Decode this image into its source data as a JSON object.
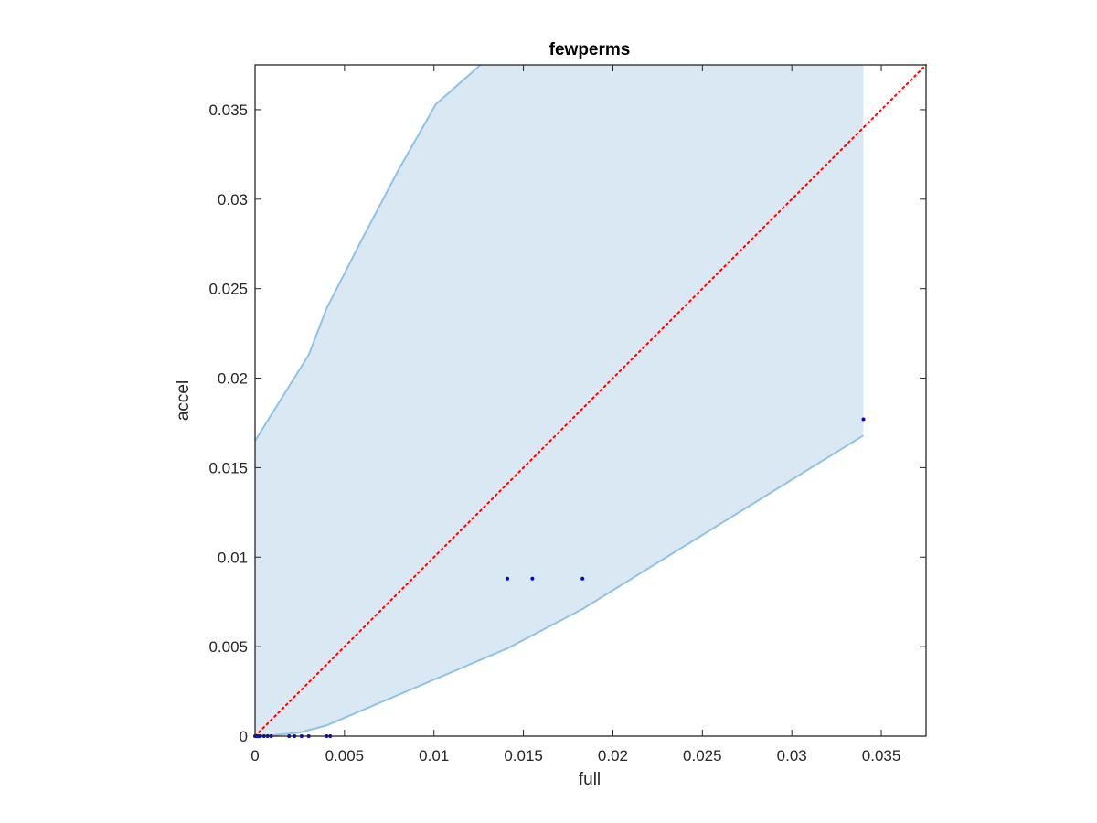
{
  "chart_data": {
    "type": "scatter",
    "title": "fewperms",
    "xlabel": "full",
    "ylabel": "accel",
    "xlim": [
      0,
      0.0375
    ],
    "ylim": [
      0,
      0.0375
    ],
    "xticks": [
      0,
      0.005,
      0.01,
      0.015,
      0.02,
      0.025,
      0.03,
      0.035
    ],
    "xtick_labels": [
      "0",
      "0.005",
      "0.01",
      "0.015",
      "0.02",
      "0.025",
      "0.03",
      "0.035"
    ],
    "yticks": [
      0,
      0.005,
      0.01,
      0.015,
      0.02,
      0.025,
      0.03,
      0.035
    ],
    "ytick_labels": [
      "0",
      "0.005",
      "0.01",
      "0.015",
      "0.02",
      "0.025",
      "0.03",
      "0.035"
    ],
    "grid": false,
    "box": true,
    "colors": {
      "band_fill": "#dae8f4",
      "band_edge": "#8fc2e6",
      "points": "#0000ee",
      "diagonal": "#ff0000",
      "axes": "#262626"
    },
    "confidence_band": {
      "upper": [
        {
          "x": 0.0,
          "y": 0.0165
        },
        {
          "x": 0.0005,
          "y": 0.0173
        },
        {
          "x": 0.001,
          "y": 0.0181
        },
        {
          "x": 0.002,
          "y": 0.0197
        },
        {
          "x": 0.003,
          "y": 0.0213
        },
        {
          "x": 0.004,
          "y": 0.0239
        },
        {
          "x": 0.006,
          "y": 0.0278
        },
        {
          "x": 0.008,
          "y": 0.0316
        },
        {
          "x": 0.0101,
          "y": 0.0353
        },
        {
          "x": 0.0126,
          "y": 0.0375
        },
        {
          "x": 0.034,
          "y": 0.0375
        }
      ],
      "lower": [
        {
          "x": 0.0,
          "y": 0.0
        },
        {
          "x": 0.001,
          "y": 5e-05
        },
        {
          "x": 0.0025,
          "y": 0.0002
        },
        {
          "x": 0.004,
          "y": 0.0006
        },
        {
          "x": 0.0141,
          "y": 0.0049
        },
        {
          "x": 0.0183,
          "y": 0.0071
        },
        {
          "x": 0.034,
          "y": 0.0168
        }
      ]
    },
    "diagonal": [
      [
        0,
        0
      ],
      [
        0.0375,
        0.0375
      ]
    ],
    "points": [
      {
        "x": 0.0,
        "y": 0.0
      },
      {
        "x": 0.0001,
        "y": 0.0
      },
      {
        "x": 0.0002,
        "y": 0.0
      },
      {
        "x": 0.0003,
        "y": 0.0
      },
      {
        "x": 0.0005,
        "y": 0.0
      },
      {
        "x": 0.0007,
        "y": 0.0
      },
      {
        "x": 0.0009,
        "y": 0.0
      },
      {
        "x": 0.0019,
        "y": 0.0
      },
      {
        "x": 0.0022,
        "y": 0.0
      },
      {
        "x": 0.0026,
        "y": 0.0
      },
      {
        "x": 0.003,
        "y": 0.0
      },
      {
        "x": 0.004,
        "y": 0.0
      },
      {
        "x": 0.0042,
        "y": 0.0
      },
      {
        "x": 0.0141,
        "y": 0.0088
      },
      {
        "x": 0.0155,
        "y": 0.0088
      },
      {
        "x": 0.0183,
        "y": 0.0088
      },
      {
        "x": 0.034,
        "y": 0.0177
      }
    ]
  }
}
